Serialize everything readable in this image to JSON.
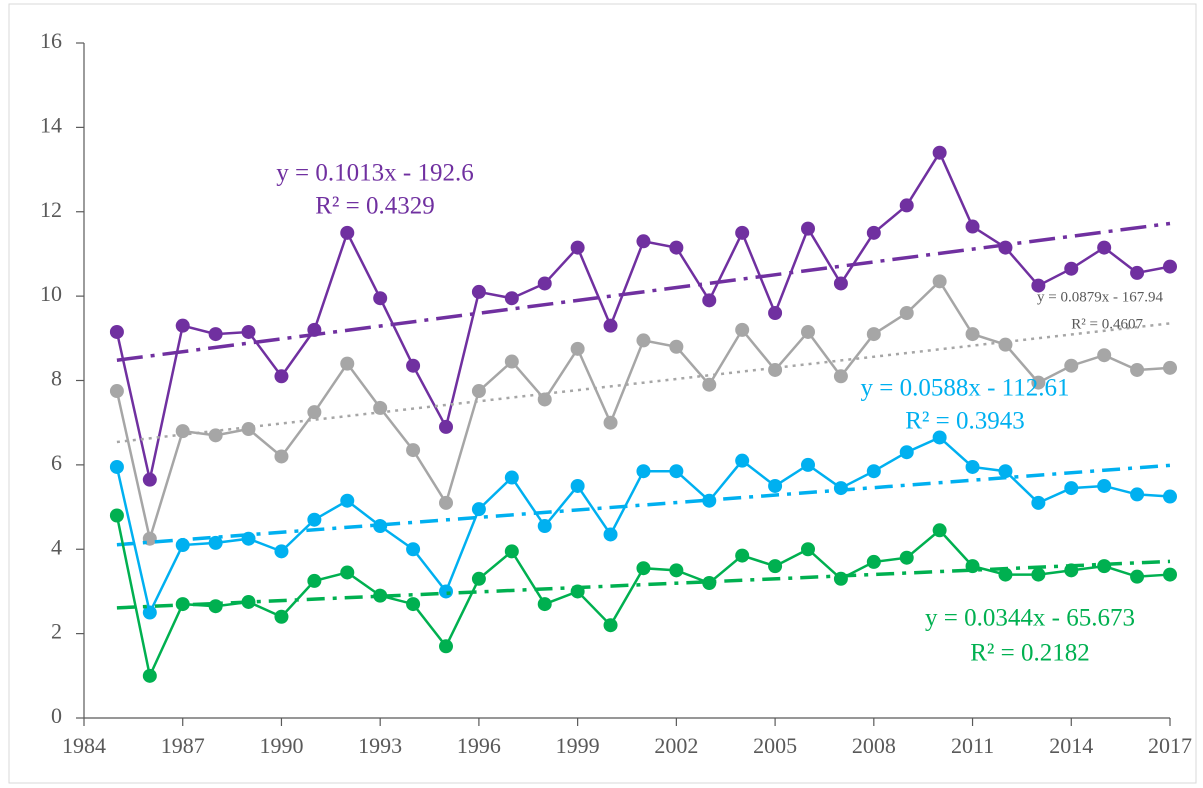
{
  "chart_data": {
    "type": "line",
    "x": [
      1985,
      1986,
      1987,
      1988,
      1989,
      1990,
      1991,
      1992,
      1993,
      1994,
      1995,
      1996,
      1997,
      1998,
      1999,
      2000,
      2001,
      2002,
      2003,
      2004,
      2005,
      2006,
      2007,
      2008,
      2009,
      2010,
      2011,
      2012,
      2013,
      2014,
      2015,
      2016,
      2017
    ],
    "xlim": [
      1984,
      2017
    ],
    "xticks": [
      1984,
      1987,
      1990,
      1993,
      1996,
      1999,
      2002,
      2005,
      2008,
      2011,
      2014,
      2017
    ],
    "ylim": [
      0,
      16
    ],
    "yticks": [
      0,
      2,
      4,
      6,
      8,
      10,
      12,
      14,
      16
    ],
    "grid": false,
    "series": [
      {
        "color": "#7030a0",
        "values": [
          9.15,
          5.65,
          9.3,
          9.1,
          9.15,
          8.1,
          9.2,
          11.5,
          9.95,
          8.35,
          6.9,
          10.1,
          9.95,
          10.3,
          11.15,
          9.3,
          11.3,
          11.15,
          9.9,
          11.5,
          9.6,
          11.6,
          10.3,
          11.5,
          12.15,
          13.4,
          11.65,
          11.15,
          10.25,
          10.65,
          11.15,
          10.55,
          10.7
        ],
        "trendline": {
          "slope": 0.1013,
          "intercept": -192.6,
          "dash": "26,8,4,8",
          "equation": "y = 0.1013x - 192.6",
          "r2": "R² = 0.4329"
        }
      },
      {
        "color": "#a6a6a6",
        "values": [
          7.75,
          4.25,
          6.8,
          6.7,
          6.85,
          6.2,
          7.25,
          8.4,
          7.35,
          6.35,
          5.1,
          7.75,
          8.45,
          7.55,
          8.75,
          7.0,
          8.95,
          8.8,
          7.9,
          9.2,
          8.25,
          9.15,
          8.1,
          9.1,
          9.6,
          10.35,
          9.1,
          8.85,
          7.95,
          8.35,
          8.6,
          8.25,
          8.3
        ],
        "trendline": {
          "slope": 0.0879,
          "intercept": -167.94,
          "dash": "3,5",
          "equation": "y = 0.0879x - 167.94",
          "r2": "R² = 0.4607"
        }
      },
      {
        "color": "#00b0f0",
        "values": [
          5.95,
          2.5,
          4.1,
          4.15,
          4.25,
          3.95,
          4.7,
          5.15,
          4.55,
          4.0,
          3.0,
          4.95,
          5.7,
          4.55,
          5.5,
          4.35,
          5.85,
          5.85,
          5.15,
          6.1,
          5.5,
          6.0,
          5.45,
          5.85,
          6.3,
          6.65,
          5.95,
          5.85,
          5.1,
          5.45,
          5.5,
          5.3,
          5.25
        ],
        "trendline": {
          "slope": 0.0588,
          "intercept": -112.61,
          "dash": "18,8,4,8",
          "equation": "y = 0.0588x - 112.61",
          "r2": "R² = 0.3943"
        }
      },
      {
        "color": "#00b050",
        "values": [
          4.8,
          1.0,
          2.7,
          2.65,
          2.75,
          2.4,
          3.25,
          3.45,
          2.9,
          2.7,
          1.7,
          3.3,
          3.95,
          2.7,
          3.0,
          2.2,
          3.55,
          3.5,
          3.2,
          3.85,
          3.6,
          4.0,
          3.3,
          3.7,
          3.8,
          4.45,
          3.6,
          3.4,
          3.4,
          3.5,
          3.6,
          3.35,
          3.4
        ],
        "trendline": {
          "slope": 0.0344,
          "intercept": -65.673,
          "dash": "18,8,4,8",
          "equation": "y = 0.0344x - 65.673",
          "r2": "R² = 0.2182"
        }
      }
    ]
  }
}
